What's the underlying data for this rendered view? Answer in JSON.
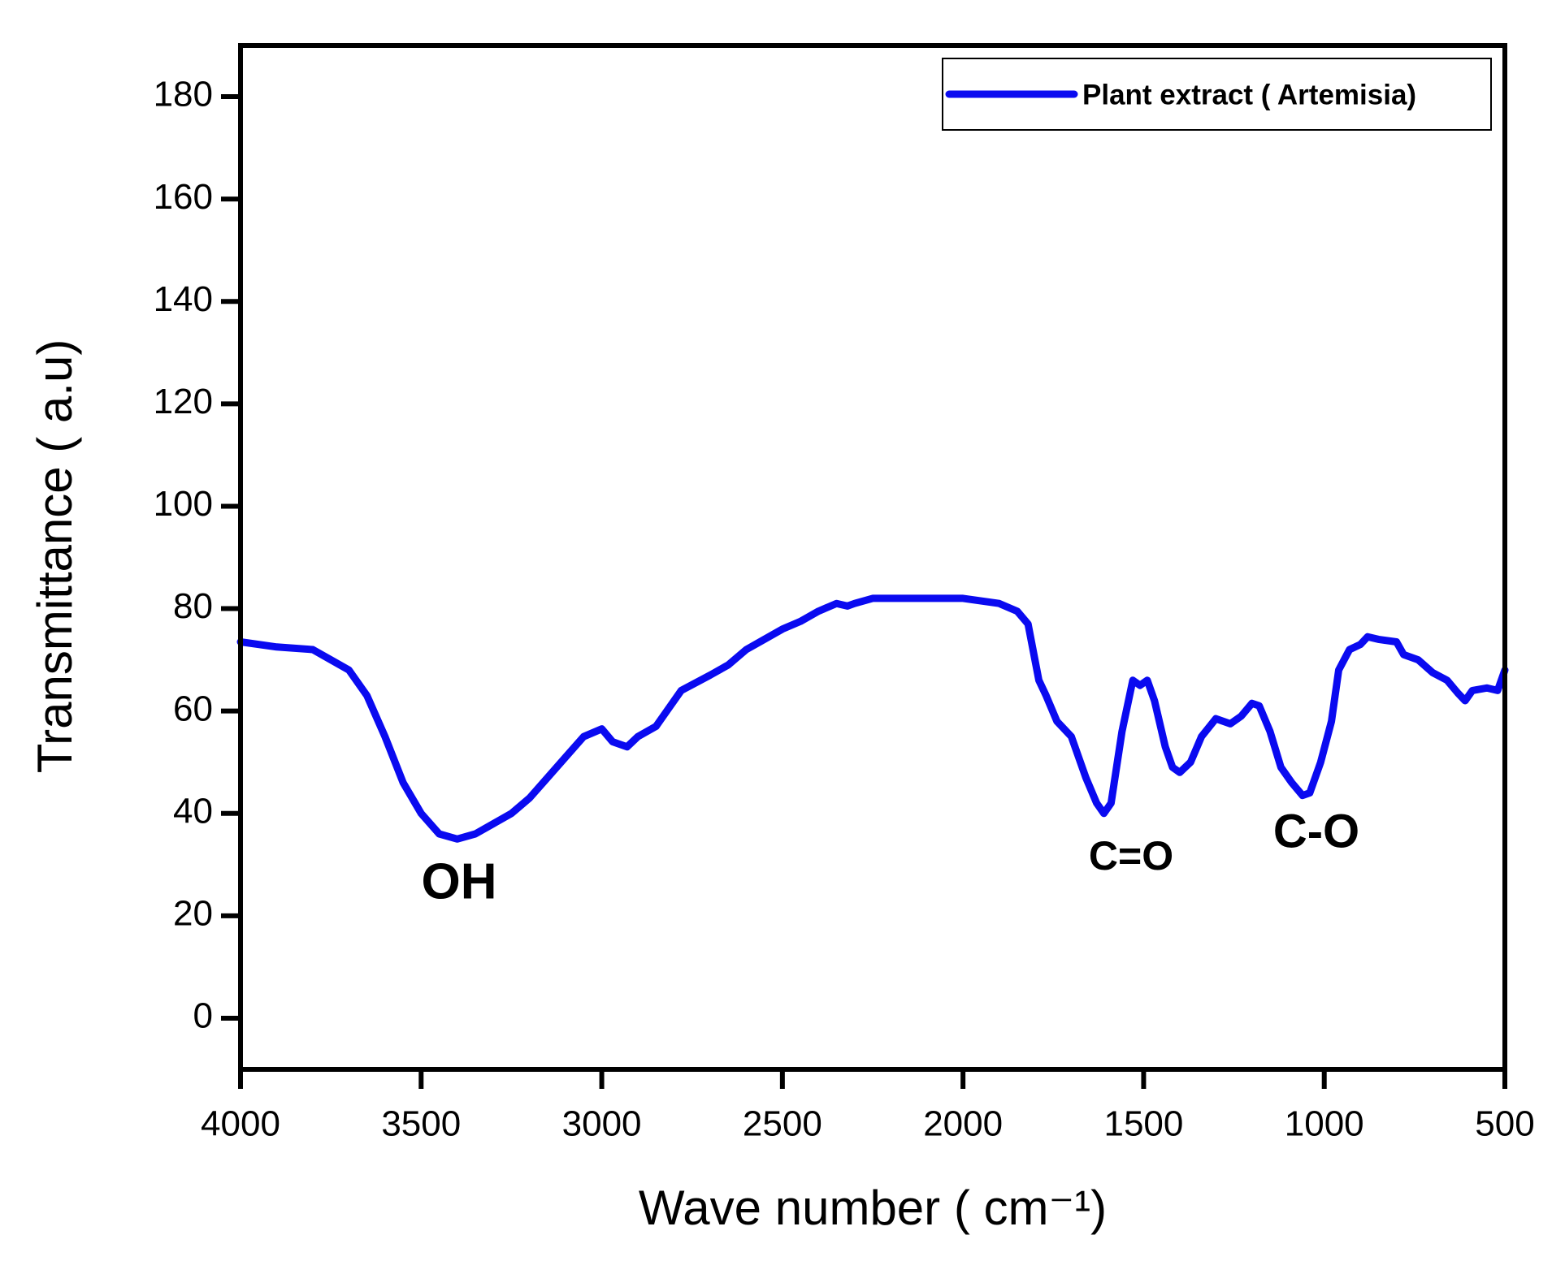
{
  "chart_data": {
    "type": "line",
    "x_label": "Wave number ( cm⁻¹)",
    "y_label": "Transmittance ( a.u)",
    "x": [
      4000,
      3900,
      3800,
      3750,
      3700,
      3650,
      3600,
      3550,
      3500,
      3450,
      3400,
      3350,
      3300,
      3250,
      3200,
      3150,
      3100,
      3050,
      3000,
      2970,
      2930,
      2900,
      2850,
      2820,
      2780,
      2700,
      2650,
      2600,
      2550,
      2500,
      2450,
      2400,
      2350,
      2320,
      2300,
      2250,
      2200,
      2100,
      2000,
      1900,
      1850,
      1820,
      1790,
      1770,
      1740,
      1700,
      1660,
      1630,
      1610,
      1590,
      1560,
      1530,
      1510,
      1490,
      1470,
      1440,
      1420,
      1400,
      1370,
      1340,
      1300,
      1260,
      1230,
      1200,
      1180,
      1150,
      1120,
      1090,
      1060,
      1040,
      1010,
      980,
      960,
      930,
      900,
      880,
      850,
      800,
      780,
      740,
      700,
      660,
      630,
      610,
      590,
      550,
      520,
      500
    ],
    "series": [
      {
        "name": "Plant extract ( Artemisia)",
        "color": "#0a0af0",
        "values": [
          73.5,
          72.5,
          72,
          70,
          68,
          63,
          55,
          46,
          40,
          36,
          35,
          36,
          38,
          40,
          43,
          47,
          51,
          55,
          56.5,
          54,
          53,
          55,
          57,
          60,
          64,
          67,
          69,
          72,
          74,
          76,
          77.5,
          79.5,
          81,
          80.5,
          81,
          82,
          82,
          82,
          82,
          81,
          79.5,
          77,
          66,
          63,
          58,
          55,
          47,
          42,
          40,
          42,
          56,
          66,
          65,
          66,
          62,
          53,
          49,
          48,
          50,
          55,
          58.5,
          57.5,
          59,
          61.5,
          61,
          56,
          49,
          46,
          43.5,
          44,
          50,
          58,
          68,
          72,
          73,
          74.5,
          74,
          73.5,
          71,
          70,
          67.5,
          66,
          63.5,
          62,
          64,
          64.5,
          64,
          68
        ]
      }
    ],
    "xlim": [
      4000,
      500
    ],
    "xticks": [
      4000,
      3500,
      3000,
      2500,
      2000,
      1500,
      1000,
      500
    ],
    "ylim": [
      -10,
      190
    ],
    "yticks": [
      0,
      20,
      40,
      60,
      80,
      100,
      120,
      140,
      160,
      180
    ],
    "legend": "top-right",
    "annotations": [
      "OH",
      "C=O",
      "C-O"
    ]
  }
}
